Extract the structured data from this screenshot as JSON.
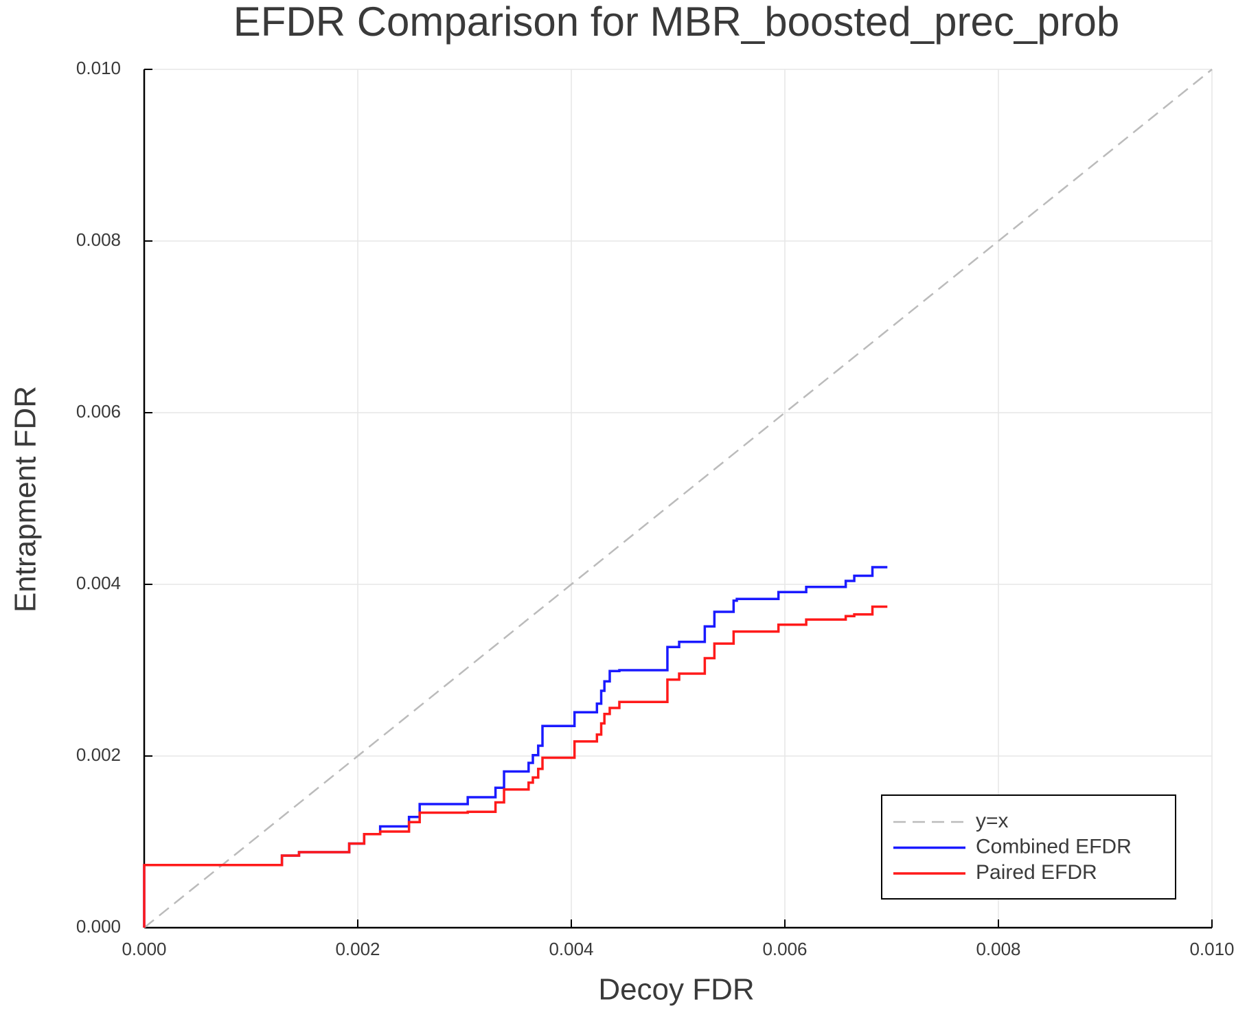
{
  "chart_data": {
    "type": "line",
    "title": "EFDR Comparison for MBR_boosted_prec_prob",
    "x_label": "Decoy FDR",
    "y_label": "Entrapment FDR",
    "xlim": [
      0,
      0.01
    ],
    "ylim": [
      0,
      0.01
    ],
    "xticks": [
      {
        "value": 0,
        "label": "0.000"
      },
      {
        "value": 0.002,
        "label": "0.002"
      },
      {
        "value": 0.004,
        "label": "0.004"
      },
      {
        "value": 0.006,
        "label": "0.006"
      },
      {
        "value": 0.008,
        "label": "0.008"
      },
      {
        "value": 0.01,
        "label": "0.010"
      }
    ],
    "yticks": [
      {
        "value": 0,
        "label": "0.000"
      },
      {
        "value": 0.002,
        "label": "0.002"
      },
      {
        "value": 0.004,
        "label": "0.004"
      },
      {
        "value": 0.006,
        "label": "0.006"
      },
      {
        "value": 0.008,
        "label": "0.008"
      },
      {
        "value": 0.01,
        "label": "0.010"
      }
    ],
    "grid": true,
    "legend_position": "bottom-right",
    "series": [
      {
        "name": "y=x",
        "color": "#bbbbbb",
        "dash": true,
        "step": false,
        "x": [
          0,
          0.01
        ],
        "values": [
          0,
          0.01
        ]
      },
      {
        "name": "Combined EFDR",
        "color": "#1a1aff",
        "dash": false,
        "step": true,
        "x": [
          0,
          0,
          0.00129,
          0.00145,
          0.00192,
          0.00206,
          0.00221,
          0.00248,
          0.00258,
          0.00303,
          0.00329,
          0.00337,
          0.0036,
          0.00364,
          0.00369,
          0.00373,
          0.00403,
          0.00424,
          0.00428,
          0.00431,
          0.00436,
          0.00445,
          0.0049,
          0.00501,
          0.00525,
          0.00534,
          0.00552,
          0.00555,
          0.00594,
          0.0062,
          0.00657,
          0.00665,
          0.00682,
          0.00696
        ],
        "values": [
          0,
          0.00073,
          0.00084,
          0.00088,
          0.00098,
          0.00109,
          0.00118,
          0.00129,
          0.00144,
          0.00152,
          0.00163,
          0.00182,
          0.00192,
          0.00201,
          0.00212,
          0.00235,
          0.00251,
          0.00261,
          0.00276,
          0.00287,
          0.00299,
          0.003,
          0.00327,
          0.00333,
          0.00351,
          0.00368,
          0.00381,
          0.00383,
          0.00391,
          0.00397,
          0.00404,
          0.0041,
          0.0042,
          0.0042
        ]
      },
      {
        "name": "Paired EFDR",
        "color": "#ff1a1a",
        "dash": false,
        "step": true,
        "x": [
          0,
          0,
          0.00129,
          0.00145,
          0.00192,
          0.00206,
          0.00221,
          0.00248,
          0.00258,
          0.00303,
          0.00329,
          0.00337,
          0.0036,
          0.00364,
          0.00369,
          0.00373,
          0.00403,
          0.00424,
          0.00428,
          0.00431,
          0.00436,
          0.00445,
          0.0049,
          0.00501,
          0.00525,
          0.00534,
          0.00552,
          0.00594,
          0.0062,
          0.00657,
          0.00665,
          0.00682,
          0.00696
        ],
        "values": [
          0,
          0.00073,
          0.00084,
          0.00088,
          0.00098,
          0.00109,
          0.00112,
          0.00123,
          0.00134,
          0.00135,
          0.00146,
          0.00161,
          0.00169,
          0.00175,
          0.00185,
          0.00198,
          0.00217,
          0.00225,
          0.00238,
          0.00249,
          0.00256,
          0.00263,
          0.00289,
          0.00296,
          0.00314,
          0.00331,
          0.00345,
          0.00353,
          0.00359,
          0.00363,
          0.00365,
          0.00374,
          0.00374
        ]
      }
    ]
  }
}
